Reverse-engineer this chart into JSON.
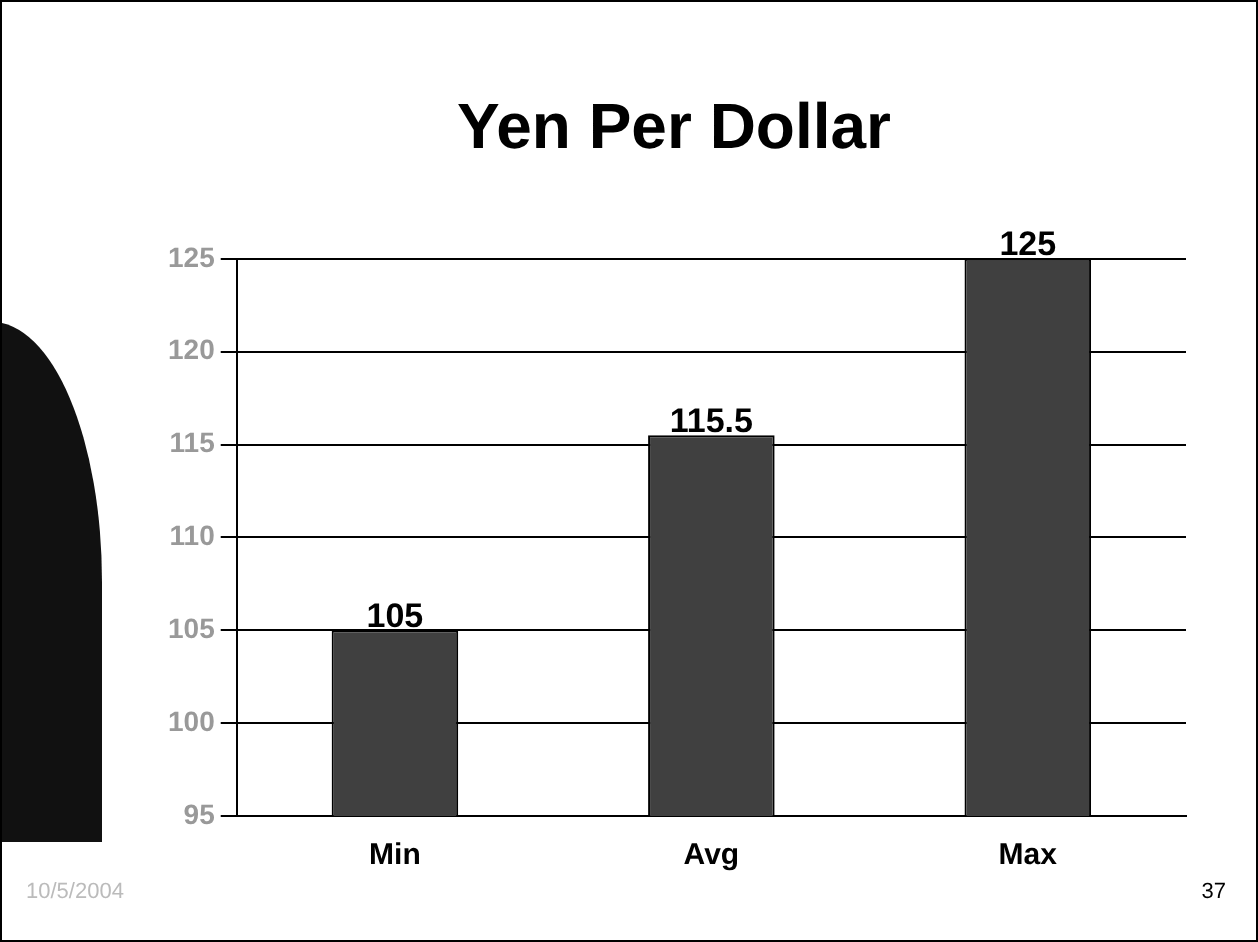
{
  "chart_data": {
    "type": "bar",
    "title": "Yen Per Dollar",
    "categories": [
      "Min",
      "Avg",
      "Max"
    ],
    "values": [
      105,
      115.5,
      125
    ],
    "color": "#404040",
    "ylim": [
      95,
      125
    ],
    "yticks": [
      95,
      100,
      105,
      110,
      115,
      120,
      125
    ],
    "grid": "y",
    "legend": false,
    "data_labels": true,
    "annotations": [
      "10/5/2004",
      "37"
    ]
  }
}
